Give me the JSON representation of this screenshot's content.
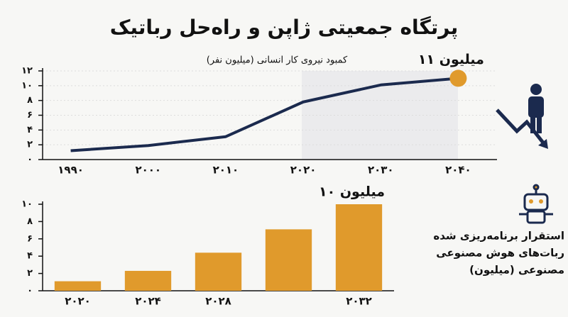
{
  "title": "پرتگاه جمعیتی ژاپن و راه‌حل رباتیک",
  "chart_data": [
    {
      "type": "line",
      "subtitle": "کمبود نیروی کار انسانی (میلیون نفر)",
      "categories": [
        "۱۹۹۰",
        "۲۰۰۰",
        "۲۰۱۰",
        "۲۰۲۰",
        "۲۰۳۰",
        "۲۰۴۰"
      ],
      "values": [
        1.2,
        1.9,
        3.1,
        7.8,
        10.1,
        11
      ],
      "color": "#1b2a4e",
      "marker_color": "#e09a2c",
      "annotation": "۱۱ میلیون",
      "ylim": [
        0,
        12
      ],
      "yticks": [
        {
          "value": 0,
          "label": "۰"
        },
        {
          "value": 2,
          "label": "۲"
        },
        {
          "value": 4,
          "label": "۴"
        },
        {
          "value": 6,
          "label": "۶"
        },
        {
          "value": 8,
          "label": "۸"
        },
        {
          "value": 10,
          "label": "۱۰"
        },
        {
          "value": 12,
          "label": "۱۲"
        }
      ],
      "grid": true
    },
    {
      "type": "bar",
      "categories": [
        "۲۰۲۰",
        "۲۰۲۴",
        "۲۰۲۸",
        null,
        "۲۰۳۲"
      ],
      "values": [
        1.1,
        2.3,
        4.4,
        7.1,
        10
      ],
      "color": "#e09a2c",
      "annotation": "۱۰ میلیون",
      "legend_lines": [
        "استقرار برنامه‌ریزی شده",
        "ربات‌های هوش مصنوعی",
        "مصنوعی (میلیون)"
      ],
      "ylim": [
        0,
        10
      ],
      "yticks": [
        {
          "value": 0,
          "label": "۰"
        },
        {
          "value": 2,
          "label": "۲"
        },
        {
          "value": 4,
          "label": "۴"
        },
        {
          "value": 6,
          "label": "۶"
        },
        {
          "value": 8,
          "label": "۸"
        },
        {
          "value": 10,
          "label": "۱۰"
        }
      ],
      "grid": false
    }
  ]
}
